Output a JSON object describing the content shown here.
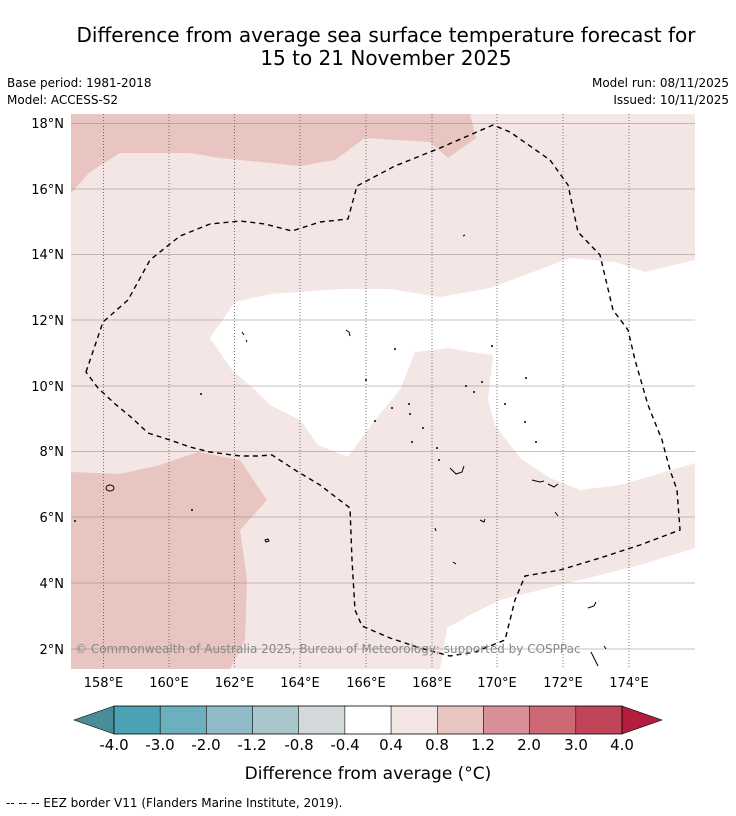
{
  "header": {
    "title_line1": "Difference from average sea surface temperature forecast for",
    "title_line2": "15 to 21 November 2025",
    "base_period": "Base period: 1981-2018",
    "model": "Model: ACCESS-S2",
    "model_run": "Model run: 08/11/2025",
    "issued": "Issued: 10/11/2025"
  },
  "map": {
    "lat_ticks": [
      "18°N",
      "16°N",
      "14°N",
      "12°N",
      "10°N",
      "8°N",
      "6°N",
      "4°N",
      "2°N"
    ],
    "lon_ticks": [
      "158°E",
      "160°E",
      "162°E",
      "164°E",
      "166°E",
      "168°E",
      "170°E",
      "172°E",
      "174°E"
    ],
    "copyright": "© Commonwealth of Australia 2025, Bureau of Meteorology; supported by COSPPac",
    "colors": {
      "band_0_8_to_1_2": "#e8c5c1",
      "band_0_4_to_0_8": "#f4e6e4",
      "band_neg0_4_to_0_4": "#ffffff"
    }
  },
  "colorbar": {
    "labels": [
      "-4.0",
      "-3.0",
      "-2.0",
      "-1.2",
      "-0.8",
      "-0.4",
      "0.4",
      "0.8",
      "1.2",
      "2.0",
      "3.0",
      "4.0"
    ],
    "colors": [
      "#4a8c97",
      "#4aa2b4",
      "#6cafbf",
      "#8ebbc7",
      "#a9c6cc",
      "#d3d8da",
      "#ffffff",
      "#f4e6e4",
      "#e8c5c1",
      "#d88f97",
      "#cc6975",
      "#c04558",
      "#b31e3f"
    ],
    "title": "Difference from average (°C)"
  },
  "footnote": "--  --  -- EEZ border V11 (Flanders Marine Institute, 2019)."
}
